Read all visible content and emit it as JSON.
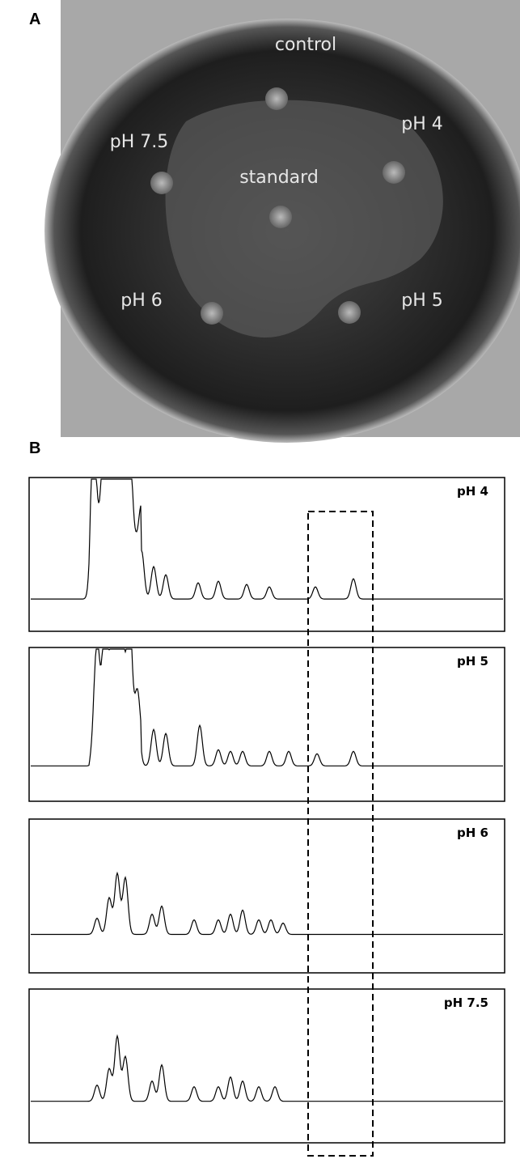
{
  "panel_a": {
    "label": "A",
    "spots": [
      {
        "label": "control"
      },
      {
        "label": "pH 7.5"
      },
      {
        "label": "pH 4"
      },
      {
        "label": "standard"
      },
      {
        "label": "pH 6"
      },
      {
        "label": "pH 5"
      }
    ]
  },
  "panel_b": {
    "label": "B",
    "traces": [
      {
        "label": "pH 4"
      },
      {
        "label": "pH 5"
      },
      {
        "label": "pH 6"
      },
      {
        "label": "pH 7.5"
      }
    ]
  }
}
